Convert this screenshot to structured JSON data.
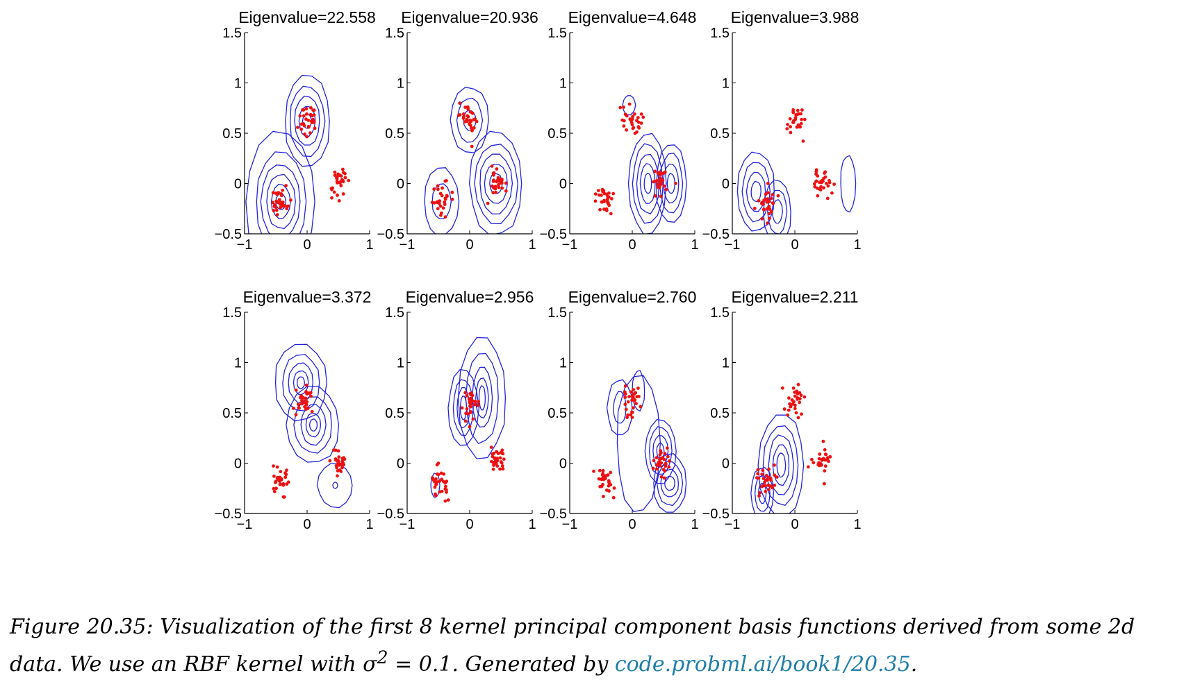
{
  "figure": {
    "caption_prefix": "Figure 20.35: Visualization of the first 8 kernel principal component basis functions derived from some 2d data. We use an RBF kernel with σ",
    "caption_sup": "2",
    "caption_mid": " = 0.1. Generated by ",
    "caption_link": "code.probml.ai/book1/20.35",
    "caption_end": "."
  },
  "colors": {
    "contour": "#2222dd",
    "points": "#ee1111",
    "axis": "#000000"
  },
  "chart_data": [
    {
      "type": "scatter",
      "title": "Eigenvalue=22.558",
      "xlim": [
        -1,
        1
      ],
      "ylim": [
        -0.5,
        1.5
      ],
      "xticks": [
        "−1",
        "0",
        "1"
      ],
      "yticks": [
        "−0.5",
        "0",
        "0.5",
        "1",
        "1.5"
      ],
      "contours": [
        {
          "cx": 0.0,
          "cy": 0.62,
          "levels": [
            [
              0.07,
              0.07
            ],
            [
              0.13,
              0.15
            ],
            [
              0.2,
              0.25
            ],
            [
              0.28,
              0.35
            ],
            [
              0.36,
              0.47
            ]
          ]
        },
        {
          "cx": -0.42,
          "cy": -0.18,
          "levels": [
            [
              0.08,
              0.08
            ],
            [
              0.15,
              0.17
            ],
            [
              0.23,
              0.27
            ],
            [
              0.31,
              0.38
            ],
            [
              0.4,
              0.5
            ],
            [
              0.55,
              0.7
            ]
          ]
        }
      ],
      "clusters": [
        {
          "cx": 0.0,
          "cy": 0.62
        },
        {
          "cx": -0.45,
          "cy": -0.18
        },
        {
          "cx": 0.5,
          "cy": 0.0
        }
      ]
    },
    {
      "type": "scatter",
      "title": "Eigenvalue=20.936",
      "xlim": [
        -1,
        1
      ],
      "ylim": [
        -0.5,
        1.5
      ],
      "xticks": [
        "−1",
        "0",
        "1"
      ],
      "yticks": [
        "−0.5",
        "0",
        "0.5",
        "1",
        "1.5"
      ],
      "contours": [
        {
          "cx": 0.0,
          "cy": 0.63,
          "levels": [
            [
              0.1,
              0.1
            ],
            [
              0.2,
              0.22
            ],
            [
              0.3,
              0.33
            ]
          ]
        },
        {
          "cx": -0.45,
          "cy": -0.18,
          "levels": [
            [
              0.15,
              0.18
            ],
            [
              0.28,
              0.34
            ]
          ]
        },
        {
          "cx": 0.42,
          "cy": 0.0,
          "levels": [
            [
              0.1,
              0.1
            ],
            [
              0.18,
              0.2
            ],
            [
              0.26,
              0.3
            ],
            [
              0.34,
              0.4
            ],
            [
              0.42,
              0.52
            ]
          ]
        }
      ],
      "clusters": [
        {
          "cx": 0.0,
          "cy": 0.63
        },
        {
          "cx": -0.45,
          "cy": -0.18
        },
        {
          "cx": 0.45,
          "cy": 0.02
        }
      ]
    },
    {
      "type": "scatter",
      "title": "Eigenvalue=4.648",
      "xlim": [
        -1,
        1
      ],
      "ylim": [
        -0.5,
        1.5
      ],
      "xticks": [
        "−1",
        "0",
        "1"
      ],
      "yticks": [
        "−0.5",
        "0",
        "0.5",
        "1",
        "1.5"
      ],
      "contours": [
        {
          "cx": 0.25,
          "cy": 0.0,
          "levels": [
            [
              0.06,
              0.1
            ],
            [
              0.12,
              0.2
            ],
            [
              0.18,
              0.3
            ],
            [
              0.24,
              0.4
            ],
            [
              0.3,
              0.5
            ]
          ]
        },
        {
          "cx": 0.62,
          "cy": 0.0,
          "levels": [
            [
              0.06,
              0.1
            ],
            [
              0.12,
              0.2
            ],
            [
              0.18,
              0.3
            ],
            [
              0.24,
              0.4
            ]
          ]
        },
        {
          "cx": -0.05,
          "cy": 0.78,
          "levels": [
            [
              0.1,
              0.1
            ]
          ]
        }
      ],
      "clusters": [
        {
          "cx": 0.0,
          "cy": 0.62
        },
        {
          "cx": -0.45,
          "cy": -0.15
        },
        {
          "cx": 0.45,
          "cy": 0.03
        }
      ]
    },
    {
      "type": "scatter",
      "title": "Eigenvalue=3.988",
      "xlim": [
        -1,
        1
      ],
      "ylim": [
        -0.5,
        1.5
      ],
      "xticks": [
        "−1",
        "0",
        "1"
      ],
      "yticks": [
        "−0.5",
        "0",
        "0.5",
        "1",
        "1.5"
      ],
      "contours": [
        {
          "cx": -0.62,
          "cy": -0.08,
          "levels": [
            [
              0.08,
              0.1
            ],
            [
              0.15,
              0.2
            ],
            [
              0.22,
              0.3
            ],
            [
              0.3,
              0.4
            ]
          ]
        },
        {
          "cx": -0.28,
          "cy": -0.28,
          "levels": [
            [
              0.08,
              0.12
            ],
            [
              0.15,
              0.22
            ],
            [
              0.22,
              0.32
            ]
          ]
        },
        {
          "cx": 0.85,
          "cy": 0.0,
          "levels": [
            [
              0.12,
              0.28
            ]
          ]
        }
      ],
      "clusters": [
        {
          "cx": 0.0,
          "cy": 0.62
        },
        {
          "cx": -0.45,
          "cy": -0.18
        },
        {
          "cx": 0.45,
          "cy": 0.02
        }
      ]
    },
    {
      "type": "scatter",
      "title": "Eigenvalue=3.372",
      "xlim": [
        -1,
        1
      ],
      "ylim": [
        -0.5,
        1.5
      ],
      "xticks": [
        "−1",
        "0",
        "1"
      ],
      "yticks": [
        "−0.5",
        "0",
        "0.5",
        "1",
        "1.5"
      ],
      "contours": [
        {
          "cx": -0.1,
          "cy": 0.8,
          "levels": [
            [
              0.06,
              0.06
            ],
            [
              0.12,
              0.12
            ],
            [
              0.2,
              0.2
            ],
            [
              0.3,
              0.28
            ],
            [
              0.42,
              0.38
            ]
          ]
        },
        {
          "cx": 0.1,
          "cy": 0.38,
          "levels": [
            [
              0.06,
              0.06
            ],
            [
              0.12,
              0.12
            ],
            [
              0.2,
              0.2
            ],
            [
              0.3,
              0.28
            ],
            [
              0.42,
              0.38
            ]
          ]
        },
        {
          "cx": 0.45,
          "cy": -0.22,
          "levels": [
            [
              0.04,
              0.03
            ],
            [
              0.28,
              0.22
            ]
          ]
        }
      ],
      "clusters": [
        {
          "cx": -0.05,
          "cy": 0.6
        },
        {
          "cx": -0.45,
          "cy": -0.18
        },
        {
          "cx": 0.5,
          "cy": 0.0
        }
      ]
    },
    {
      "type": "scatter",
      "title": "Eigenvalue=2.956",
      "xlim": [
        -1,
        1
      ],
      "ylim": [
        -0.5,
        1.5
      ],
      "xticks": [
        "−1",
        "0",
        "1"
      ],
      "yticks": [
        "−0.5",
        "0",
        "0.5",
        "1",
        "1.5"
      ],
      "contours": [
        {
          "cx": -0.1,
          "cy": 0.55,
          "levels": [
            [
              0.05,
              0.12
            ],
            [
              0.1,
              0.2
            ],
            [
              0.16,
              0.28
            ],
            [
              0.24,
              0.38
            ]
          ]
        },
        {
          "cx": 0.2,
          "cy": 0.65,
          "levels": [
            [
              0.05,
              0.12
            ],
            [
              0.1,
              0.2
            ],
            [
              0.16,
              0.3
            ],
            [
              0.26,
              0.45
            ],
            [
              0.38,
              0.6
            ]
          ]
        },
        {
          "cx": -0.55,
          "cy": -0.22,
          "levels": [
            [
              0.07,
              0.12
            ]
          ]
        }
      ],
      "clusters": [
        {
          "cx": 0.0,
          "cy": 0.58
        },
        {
          "cx": -0.45,
          "cy": -0.18
        },
        {
          "cx": 0.45,
          "cy": 0.02
        }
      ]
    },
    {
      "type": "scatter",
      "title": "Eigenvalue=2.760",
      "xlim": [
        -1,
        1
      ],
      "ylim": [
        -0.5,
        1.5
      ],
      "xticks": [
        "−1",
        "0",
        "1"
      ],
      "yticks": [
        "−0.5",
        "0",
        "0.5",
        "1",
        "1.5"
      ],
      "contours": [
        {
          "cx": -0.2,
          "cy": 0.55,
          "levels": [
            [
              0.1,
              0.16
            ],
            [
              0.2,
              0.28
            ]
          ]
        },
        {
          "cx": 0.1,
          "cy": 0.72,
          "levels": [
            [
              0.1,
              0.2
            ]
          ]
        },
        {
          "cx": 0.45,
          "cy": 0.12,
          "levels": [
            [
              0.06,
              0.08
            ],
            [
              0.12,
              0.16
            ],
            [
              0.18,
              0.24
            ],
            [
              0.25,
              0.32
            ]
          ]
        },
        {
          "cx": 0.6,
          "cy": -0.2,
          "levels": [
            [
              0.08,
              0.07
            ],
            [
              0.14,
              0.14
            ],
            [
              0.2,
              0.22
            ],
            [
              0.26,
              0.3
            ]
          ]
        },
        {
          "cx": 0.1,
          "cy": 0.2,
          "levels": [
            [
              0.35,
              0.7
            ]
          ]
        }
      ],
      "clusters": [
        {
          "cx": 0.0,
          "cy": 0.6
        },
        {
          "cx": -0.45,
          "cy": -0.18
        },
        {
          "cx": 0.45,
          "cy": 0.02
        }
      ]
    },
    {
      "type": "scatter",
      "title": "Eigenvalue=2.211",
      "xlim": [
        -1,
        1
      ],
      "ylim": [
        -0.5,
        1.5
      ],
      "xticks": [
        "−1",
        "0",
        "1"
      ],
      "yticks": [
        "−0.5",
        "0",
        "0.5",
        "1",
        "1.5"
      ],
      "contours": [
        {
          "cx": -0.22,
          "cy": -0.02,
          "levels": [
            [
              0.07,
              0.12
            ],
            [
              0.13,
              0.2
            ],
            [
              0.2,
              0.3
            ],
            [
              0.28,
              0.4
            ],
            [
              0.36,
              0.52
            ]
          ]
        },
        {
          "cx": -0.52,
          "cy": -0.3,
          "levels": [
            [
              0.06,
              0.1
            ],
            [
              0.12,
              0.18
            ],
            [
              0.18,
              0.26
            ]
          ]
        }
      ],
      "clusters": [
        {
          "cx": 0.0,
          "cy": 0.62
        },
        {
          "cx": -0.45,
          "cy": -0.18
        },
        {
          "cx": 0.45,
          "cy": 0.02
        }
      ]
    }
  ]
}
